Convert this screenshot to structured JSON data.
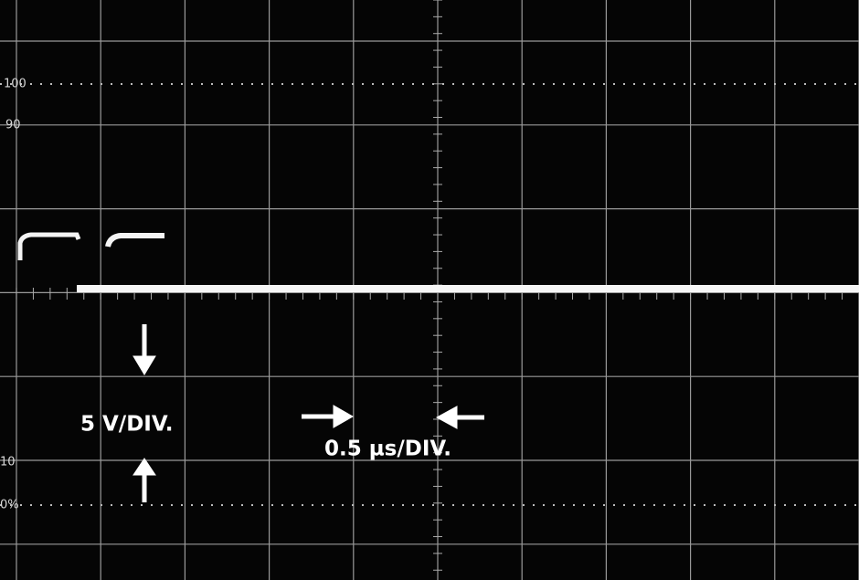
{
  "graticule": {
    "labels": [
      "100",
      "90",
      "10",
      "0%"
    ]
  },
  "annotations": {
    "vertical_scale": "5 V/DIV.",
    "horizontal_scale": "0.5 µs/DIV."
  }
}
